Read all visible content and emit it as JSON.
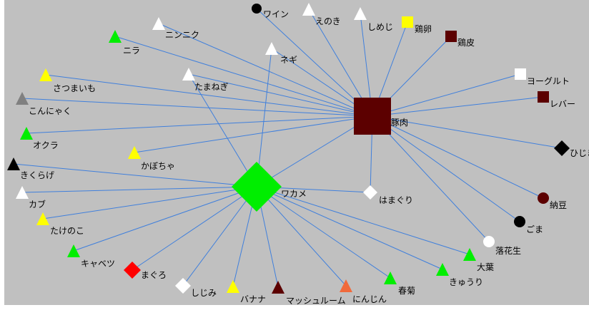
{
  "colors": {
    "background": "#c0c0c0",
    "edge": "#3f7fdc",
    "white": "#ffffff",
    "black": "#000000",
    "green": "#00ee00",
    "yellow": "#ffff00",
    "maroon": "#5c0000",
    "gray": "#808080",
    "red": "#ff0000",
    "orange": "#f06a3c"
  },
  "hubs": [
    {
      "id": "pork",
      "label": "豚肉",
      "shape": "square",
      "color": "maroon"
    },
    {
      "id": "wakame",
      "label": "ワカメ",
      "shape": "diamond",
      "color": "green"
    }
  ],
  "nodes": [
    {
      "id": "wine",
      "label": "ワイン",
      "shape": "circle",
      "color": "black"
    },
    {
      "id": "enoki",
      "label": "えのき",
      "shape": "triangle",
      "color": "white"
    },
    {
      "id": "shimeji",
      "label": "しめじ",
      "shape": "triangle",
      "color": "white"
    },
    {
      "id": "egg",
      "label": "鶏卵",
      "shape": "square",
      "color": "yellow"
    },
    {
      "id": "chicken_skin",
      "label": "鶏皮",
      "shape": "square",
      "color": "maroon"
    },
    {
      "id": "garlic",
      "label": "ニンニク",
      "shape": "triangle",
      "color": "white"
    },
    {
      "id": "nira",
      "label": "ニラ",
      "shape": "triangle",
      "color": "green"
    },
    {
      "id": "negi",
      "label": "ネギ",
      "shape": "triangle",
      "color": "white"
    },
    {
      "id": "sweet_potato",
      "label": "さつまいも",
      "shape": "triangle",
      "color": "yellow"
    },
    {
      "id": "onion",
      "label": "たまねぎ",
      "shape": "triangle",
      "color": "white"
    },
    {
      "id": "yogurt",
      "label": "ヨーグルト",
      "shape": "square",
      "color": "white"
    },
    {
      "id": "liver",
      "label": "レバー",
      "shape": "square",
      "color": "maroon"
    },
    {
      "id": "konnyaku",
      "label": "こんにゃく",
      "shape": "triangle",
      "color": "gray"
    },
    {
      "id": "okra",
      "label": "オクラ",
      "shape": "triangle",
      "color": "green"
    },
    {
      "id": "hijiki",
      "label": "ひじき",
      "shape": "diamond",
      "color": "black"
    },
    {
      "id": "pumpkin",
      "label": "かぼちゃ",
      "shape": "triangle",
      "color": "yellow"
    },
    {
      "id": "kikurage",
      "label": "きくらげ",
      "shape": "triangle",
      "color": "black"
    },
    {
      "id": "clam",
      "label": "はまぐり",
      "shape": "diamond",
      "color": "white"
    },
    {
      "id": "turnip",
      "label": "カブ",
      "shape": "triangle",
      "color": "white"
    },
    {
      "id": "natto",
      "label": "納豆",
      "shape": "circle",
      "color": "maroon"
    },
    {
      "id": "bamboo",
      "label": "たけのこ",
      "shape": "triangle",
      "color": "yellow"
    },
    {
      "id": "sesame",
      "label": "ごま",
      "shape": "circle",
      "color": "black"
    },
    {
      "id": "peanut",
      "label": "落花生",
      "shape": "circle",
      "color": "white"
    },
    {
      "id": "cabbage",
      "label": "キャベツ",
      "shape": "triangle",
      "color": "green"
    },
    {
      "id": "ooba",
      "label": "大葉",
      "shape": "triangle",
      "color": "green"
    },
    {
      "id": "tuna",
      "label": "まぐろ",
      "shape": "diamond",
      "color": "red"
    },
    {
      "id": "cucumber",
      "label": "きゅうり",
      "shape": "triangle",
      "color": "green"
    },
    {
      "id": "shijimi",
      "label": "しじみ",
      "shape": "diamond",
      "color": "white"
    },
    {
      "id": "banana",
      "label": "バナナ",
      "shape": "triangle",
      "color": "yellow"
    },
    {
      "id": "mushroom",
      "label": "マッシュルーム",
      "shape": "triangle",
      "color": "maroon"
    },
    {
      "id": "carrot",
      "label": "にんじん",
      "shape": "triangle",
      "color": "orange"
    },
    {
      "id": "shungiku",
      "label": "春菊",
      "shape": "triangle",
      "color": "green"
    }
  ],
  "edges": [
    [
      "pork",
      "wine"
    ],
    [
      "pork",
      "enoki"
    ],
    [
      "pork",
      "shimeji"
    ],
    [
      "pork",
      "egg"
    ],
    [
      "pork",
      "chicken_skin"
    ],
    [
      "pork",
      "garlic"
    ],
    [
      "pork",
      "nira"
    ],
    [
      "pork",
      "negi"
    ],
    [
      "pork",
      "sweet_potato"
    ],
    [
      "pork",
      "onion"
    ],
    [
      "pork",
      "yogurt"
    ],
    [
      "pork",
      "liver"
    ],
    [
      "pork",
      "konnyaku"
    ],
    [
      "pork",
      "okra"
    ],
    [
      "pork",
      "hijiki"
    ],
    [
      "pork",
      "pumpkin"
    ],
    [
      "pork",
      "clam"
    ],
    [
      "pork",
      "natto"
    ],
    [
      "pork",
      "sesame"
    ],
    [
      "pork",
      "peanut"
    ],
    [
      "pork",
      "wakame"
    ],
    [
      "wakame",
      "negi"
    ],
    [
      "wakame",
      "onion"
    ],
    [
      "wakame",
      "kikurage"
    ],
    [
      "wakame",
      "clam"
    ],
    [
      "wakame",
      "turnip"
    ],
    [
      "wakame",
      "bamboo"
    ],
    [
      "wakame",
      "cabbage"
    ],
    [
      "wakame",
      "ooba"
    ],
    [
      "wakame",
      "tuna"
    ],
    [
      "wakame",
      "cucumber"
    ],
    [
      "wakame",
      "shijimi"
    ],
    [
      "wakame",
      "banana"
    ],
    [
      "wakame",
      "mushroom"
    ],
    [
      "wakame",
      "carrot"
    ],
    [
      "wakame",
      "shungiku"
    ]
  ]
}
